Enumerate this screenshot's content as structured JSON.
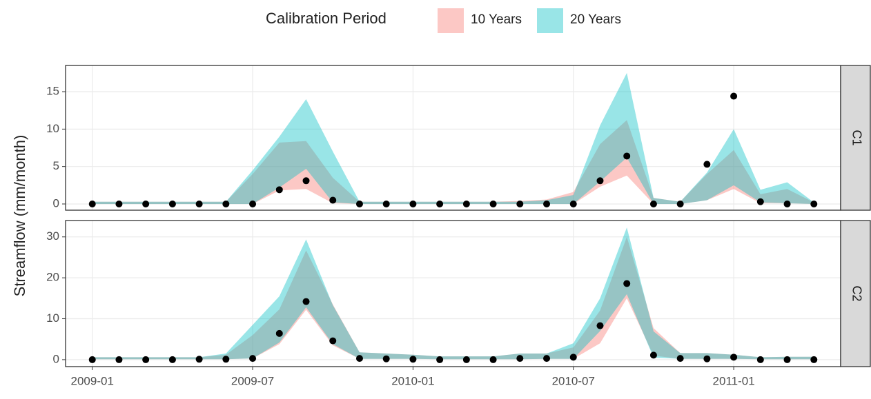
{
  "chart_data": {
    "type": "area",
    "legend_title": "Calibration Period",
    "ylabel": "Streamflow (mm/month)",
    "x": [
      "2009-01",
      "2009-02",
      "2009-03",
      "2009-04",
      "2009-05",
      "2009-06",
      "2009-07",
      "2009-08",
      "2009-09",
      "2009-10",
      "2009-11",
      "2009-12",
      "2010-01",
      "2010-02",
      "2010-03",
      "2010-04",
      "2010-05",
      "2010-06",
      "2010-07",
      "2010-08",
      "2010-09",
      "2010-10",
      "2010-11",
      "2010-12",
      "2011-01",
      "2011-02",
      "2011-03",
      "2011-04"
    ],
    "xlim": [
      "2008-12",
      "2011-05"
    ],
    "xticks": [
      "2009-01",
      "2009-07",
      "2010-01",
      "2010-07",
      "2011-01"
    ],
    "grid": true,
    "alpha": 0.4,
    "series": [
      {
        "name": "10 Years",
        "color": "#F8766D"
      },
      {
        "name": "20 Years",
        "color": "#00BFC4"
      }
    ],
    "observed_color": "#000000",
    "facets": [
      {
        "label": "C1",
        "ylim": [
          -0.83,
          18.5
        ],
        "yticks": [
          0,
          5,
          10,
          15
        ],
        "ribbons": [
          {
            "lower": [
              0,
              0,
              0,
              0,
              0,
              0,
              0,
              1.8,
              2.0,
              0.1,
              0,
              0,
              0,
              0,
              0,
              0,
              0,
              0,
              0,
              2.3,
              3.8,
              0,
              0,
              0.5,
              2.0,
              0.1,
              0.1,
              0
            ],
            "upper": [
              0.3,
              0.3,
              0.3,
              0.3,
              0.3,
              0.3,
              4.0,
              8.2,
              8.4,
              3.5,
              0.3,
              0.3,
              0.3,
              0.3,
              0.3,
              0.3,
              0.4,
              0.6,
              1.6,
              8.0,
              11.2,
              0.8,
              0.3,
              4.0,
              7.2,
              1.3,
              2.0,
              0.2
            ]
          },
          {
            "lower": [
              0,
              0,
              0,
              0,
              0,
              0,
              0,
              2.2,
              4.7,
              0.2,
              0,
              0,
              0,
              0,
              0,
              0,
              0,
              0,
              0,
              3.0,
              6.2,
              0,
              0,
              0.5,
              2.5,
              0.2,
              0.1,
              0
            ],
            "upper": [
              0.3,
              0.3,
              0.3,
              0.3,
              0.3,
              0.3,
              4.5,
              9.0,
              14.0,
              7.0,
              0.3,
              0.3,
              0.3,
              0.3,
              0.3,
              0.3,
              0.3,
              0.5,
              1.2,
              10.5,
              17.5,
              0.8,
              0.3,
              4.2,
              10.0,
              1.9,
              2.9,
              0.2
            ]
          }
        ],
        "observed": [
          0,
          0,
          0,
          0,
          0,
          0,
          0,
          1.9,
          3.1,
          0.5,
          0,
          0,
          0,
          0,
          0,
          0,
          0,
          0,
          0,
          3.1,
          6.4,
          0,
          0,
          5.3,
          14.4,
          0.3,
          0,
          0
        ]
      },
      {
        "label": "C2",
        "ylim": [
          -1.7,
          34
        ],
        "yticks": [
          0,
          10,
          20,
          30
        ],
        "ribbons": [
          {
            "lower": [
              0.1,
              0.1,
              0.1,
              0.1,
              0.1,
              0.1,
              0.3,
              3.8,
              12.2,
              3.5,
              0.2,
              0.2,
              0.2,
              0.1,
              0.1,
              0.1,
              0.1,
              0.2,
              0.2,
              4.0,
              15.0,
              1.0,
              0.2,
              0.2,
              0.2,
              0.1,
              0.1,
              0.1
            ],
            "upper": [
              0.6,
              0.6,
              0.6,
              0.6,
              0.6,
              1.2,
              6.0,
              12.3,
              26.7,
              13.5,
              1.8,
              1.5,
              1.2,
              0.8,
              0.8,
              0.8,
              1.5,
              1.5,
              3.0,
              12.0,
              30.0,
              7.7,
              1.6,
              1.6,
              1.2,
              0.6,
              0.7,
              0.7
            ]
          },
          {
            "lower": [
              0.1,
              0.1,
              0.1,
              0.1,
              0.1,
              0.1,
              0.3,
              4.2,
              12.8,
              3.8,
              0.2,
              0.2,
              0.2,
              0.1,
              0.1,
              0.1,
              0.1,
              0.2,
              0.2,
              7.0,
              16.0,
              0.5,
              0.2,
              0.2,
              0.2,
              0.1,
              0.1,
              0.1
            ],
            "upper": [
              0.6,
              0.6,
              0.6,
              0.6,
              0.6,
              1.5,
              8.5,
              15.5,
              29.4,
              13.3,
              1.8,
              1.5,
              1.2,
              0.8,
              0.8,
              0.8,
              1.5,
              1.5,
              4.0,
              15.0,
              32.3,
              6.9,
              1.6,
              1.6,
              1.2,
              0.6,
              0.7,
              0.7
            ]
          }
        ],
        "observed": [
          0,
          0,
          0,
          0,
          0.1,
          0.1,
          0.3,
          6.4,
          14.2,
          4.6,
          0.3,
          0.2,
          0.1,
          0,
          0,
          0,
          0.3,
          0.3,
          0.6,
          8.3,
          18.6,
          1.1,
          0.3,
          0.2,
          0.6,
          0,
          0,
          0
        ]
      }
    ]
  }
}
